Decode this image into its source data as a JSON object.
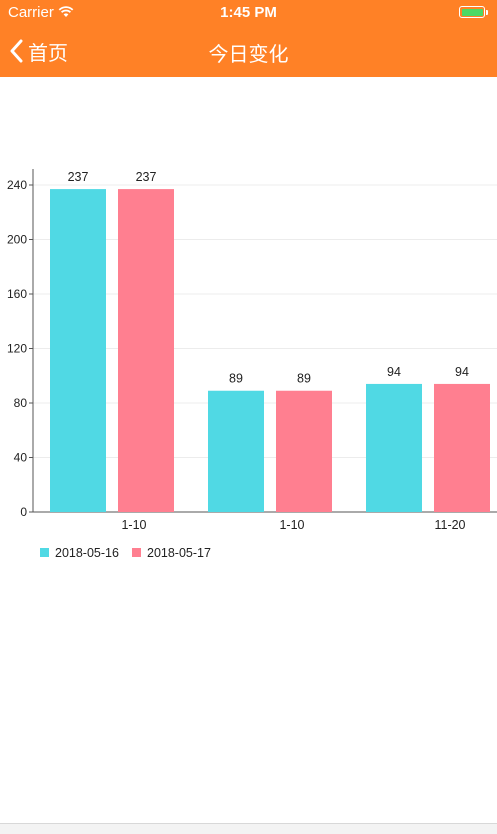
{
  "status_bar": {
    "carrier": "Carrier",
    "time": "1:45 PM",
    "battery_color": "#4CD964"
  },
  "nav": {
    "back_label": "首页",
    "title": "今日变化",
    "background": "#FF8126"
  },
  "chart_data": {
    "type": "bar",
    "categories": [
      "1-10",
      "1-10",
      "11-20"
    ],
    "series": [
      {
        "name": "2018-05-16",
        "values": [
          237,
          89,
          94
        ],
        "color": "#50D9E4"
      },
      {
        "name": "2018-05-17",
        "values": [
          237,
          89,
          94
        ],
        "color": "#FF7F90"
      }
    ],
    "y_ticks": [
      "0",
      "40",
      "80",
      "120",
      "160",
      "200",
      "240"
    ],
    "ylim": [
      0,
      240
    ],
    "grid": true,
    "legend_position": "bottom-left"
  }
}
